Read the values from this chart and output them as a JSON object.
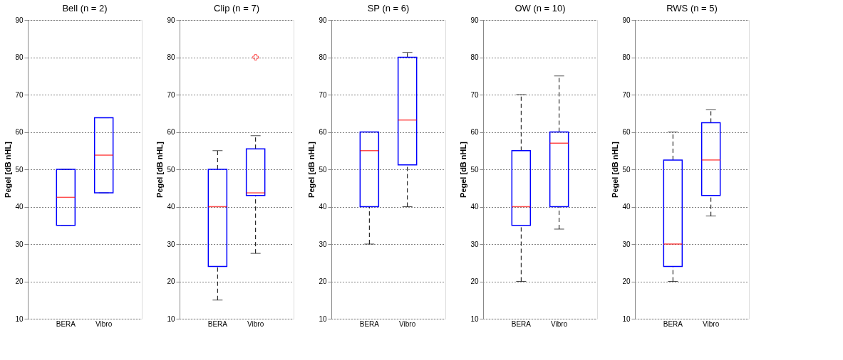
{
  "chart_data": [
    {
      "type": "box",
      "title": "Bell (n = 2)",
      "ylabel": "Pegel [dB nHL]",
      "categories": [
        "BERA",
        "Vibro"
      ],
      "ylim": [
        10,
        90
      ],
      "yticks": [
        10,
        20,
        30,
        40,
        50,
        60,
        70,
        80,
        90
      ],
      "grid": "y",
      "marker": "cross",
      "series": [
        {
          "boxes": [
            {
              "low": 35,
              "q1": 35,
              "median": 42.5,
              "q3": 50,
              "high": 50
            },
            {
              "low": 43.7,
              "q1": 43.7,
              "median": 53.8,
              "q3": 63.8,
              "high": 63.8
            }
          ]
        }
      ]
    },
    {
      "type": "box",
      "title": "Clip (n = 7)",
      "ylabel": "Pegel [dB nHL]",
      "categories": [
        "BERA",
        "Vibro"
      ],
      "ylim": [
        10,
        90
      ],
      "yticks": [
        10,
        20,
        30,
        40,
        50,
        60,
        70,
        80,
        90
      ],
      "grid": "y",
      "marker": "cross",
      "series": [
        {
          "boxes": [
            {
              "low": 15,
              "q1": 24,
              "median": 40,
              "q3": 50,
              "high": 55
            },
            {
              "low": 27.5,
              "q1": 43,
              "median": 43.7,
              "q3": 55.5,
              "high": 59,
              "outliers": [
                80
              ]
            }
          ]
        }
      ]
    },
    {
      "type": "box",
      "title": "SP (n = 6)",
      "ylabel": "Pegel [dB nHL]",
      "categories": [
        "BERA",
        "Vibro"
      ],
      "ylim": [
        10,
        90
      ],
      "yticks": [
        10,
        20,
        30,
        40,
        50,
        60,
        70,
        80,
        90
      ],
      "grid": "y",
      "marker": "cross",
      "series": [
        {
          "boxes": [
            {
              "low": 30,
              "q1": 40,
              "median": 55,
              "q3": 60,
              "high": 60
            },
            {
              "low": 40,
              "q1": 51.2,
              "median": 63.2,
              "q3": 80,
              "high": 81.3
            }
          ]
        }
      ]
    },
    {
      "type": "box",
      "title": "OW (n = 10)",
      "ylabel": "Pegel [dB nHL]",
      "categories": [
        "BERA",
        "Vibro"
      ],
      "ylim": [
        10,
        90
      ],
      "yticks": [
        10,
        20,
        30,
        40,
        50,
        60,
        70,
        80,
        90
      ],
      "grid": "y",
      "marker": "cross",
      "series": [
        {
          "boxes": [
            {
              "low": 20,
              "q1": 35,
              "median": 40,
              "q3": 55,
              "high": 70
            },
            {
              "low": 34,
              "q1": 40,
              "median": 57,
              "q3": 60,
              "high": 75
            }
          ]
        }
      ]
    },
    {
      "type": "box",
      "title": "RWS (n = 5)",
      "ylabel": "Pegel [dB nHL]",
      "categories": [
        "BERA",
        "Vibro"
      ],
      "ylim": [
        10,
        90
      ],
      "yticks": [
        10,
        20,
        30,
        40,
        50,
        60,
        70,
        80,
        90
      ],
      "grid": "y",
      "marker": "cross",
      "series": [
        {
          "boxes": [
            {
              "low": 20,
              "q1": 24,
              "median": 30,
              "q3": 52.5,
              "high": 60
            },
            {
              "low": 37.5,
              "q1": 43,
              "median": 52.5,
              "q3": 62.5,
              "high": 66
            }
          ]
        }
      ]
    }
  ]
}
